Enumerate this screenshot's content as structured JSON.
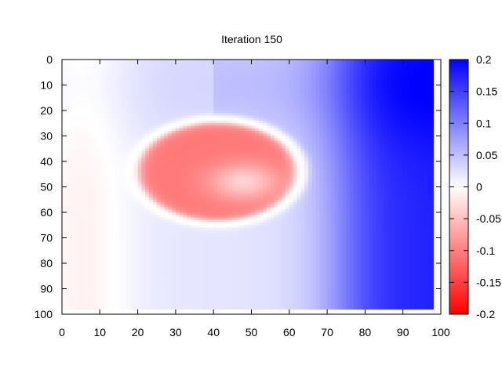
{
  "chart_data": {
    "type": "heatmap",
    "title": "Iteration 150",
    "xlabel": "",
    "ylabel": "",
    "xlim": [
      0,
      100
    ],
    "ylim": [
      0,
      100
    ],
    "y_inverted": true,
    "x_ticks": [
      0,
      10,
      20,
      30,
      40,
      50,
      60,
      70,
      80,
      90,
      100
    ],
    "y_ticks": [
      0,
      10,
      20,
      30,
      40,
      50,
      60,
      70,
      80,
      90,
      100
    ],
    "grid": false,
    "colorbar": {
      "min": -0.2,
      "max": 0.2,
      "ticks": [
        0.2,
        0.15,
        0.1,
        0.05,
        0,
        -0.05,
        -0.1,
        -0.15,
        -0.2
      ],
      "tick_labels": [
        "0.2",
        "0.15",
        "0.1",
        "0.05",
        "0",
        "-0.05",
        "-0.1",
        "-0.15",
        "-0.2"
      ],
      "colormap": [
        "#ff0000",
        "#ffffff",
        "#0000ff"
      ]
    },
    "data_extent": {
      "x": [
        0,
        97
      ],
      "y": [
        0,
        97
      ]
    },
    "field_description": "Negative (red) elliptical region centered near x=40,y=45 with a lighter core near x=48,y=48, surrounded by a white ring; strongly positive (blue) on the right side (x>75); weakly positive elsewhere."
  }
}
